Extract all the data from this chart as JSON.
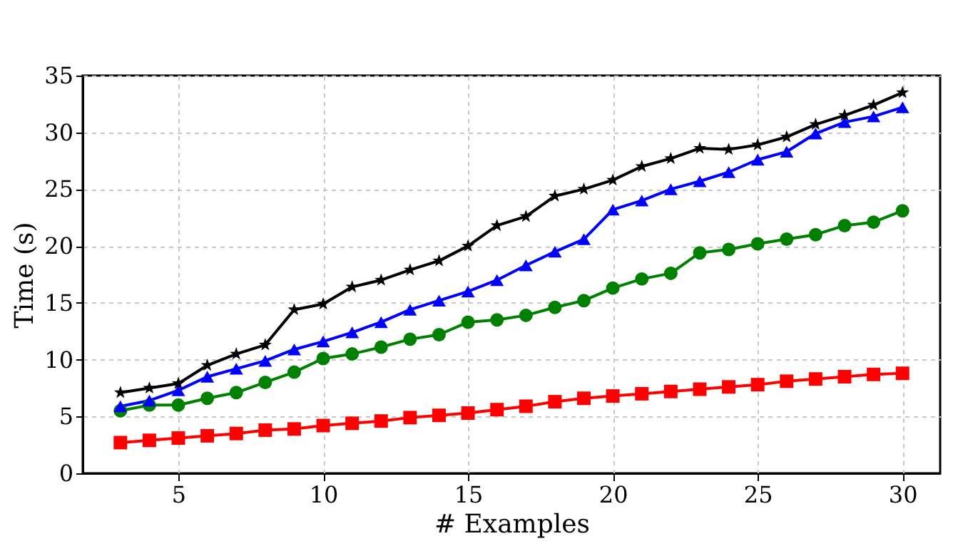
{
  "chart_data": {
    "type": "line",
    "xlabel": "# Examples",
    "ylabel": "Time (s)",
    "x": [
      3,
      4,
      5,
      6,
      7,
      8,
      9,
      10,
      11,
      12,
      13,
      14,
      15,
      16,
      17,
      18,
      19,
      20,
      21,
      22,
      23,
      24,
      25,
      26,
      27,
      28,
      29,
      30
    ],
    "xlim": [
      1.7,
      31.3
    ],
    "xticks": [
      5,
      10,
      15,
      20,
      25,
      30
    ],
    "ylim": [
      0,
      35
    ],
    "yticks": [
      0,
      5,
      10,
      15,
      20,
      25,
      30,
      35
    ],
    "grid": true,
    "legend": false,
    "line_style": "solid",
    "series": [
      {
        "color": "#ff0000",
        "marker": "square",
        "values": [
          2.7,
          2.9,
          3.1,
          3.3,
          3.5,
          3.8,
          3.9,
          4.2,
          4.4,
          4.6,
          4.9,
          5.1,
          5.3,
          5.6,
          5.9,
          6.3,
          6.6,
          6.8,
          7.0,
          7.2,
          7.4,
          7.6,
          7.8,
          8.1,
          8.3,
          8.5,
          8.7,
          8.8
        ]
      },
      {
        "color": "#008000",
        "marker": "circle",
        "values": [
          5.5,
          6.0,
          6.0,
          6.6,
          7.1,
          8.0,
          8.9,
          10.1,
          10.5,
          11.1,
          11.8,
          12.2,
          13.3,
          13.5,
          13.9,
          14.6,
          15.2,
          16.3,
          17.1,
          17.6,
          19.4,
          19.7,
          20.2,
          20.6,
          21.0,
          21.8,
          22.1,
          23.1
        ]
      },
      {
        "color": "#0000ff",
        "marker": "triangle",
        "values": [
          5.9,
          6.4,
          7.3,
          8.5,
          9.2,
          9.9,
          10.9,
          11.6,
          12.4,
          13.3,
          14.4,
          15.2,
          16.0,
          17.0,
          18.3,
          19.5,
          20.6,
          23.2,
          24.0,
          25.0,
          25.7,
          26.5,
          27.6,
          28.3,
          29.9,
          30.9,
          31.4,
          32.2
        ]
      },
      {
        "color": "#000000",
        "marker": "star",
        "values": [
          7.1,
          7.5,
          7.9,
          9.5,
          10.5,
          11.3,
          14.4,
          14.9,
          16.4,
          17.0,
          17.9,
          18.7,
          20.0,
          21.8,
          22.6,
          24.4,
          25.0,
          25.8,
          27.0,
          27.7,
          28.6,
          28.5,
          28.9,
          29.6,
          30.7,
          31.5,
          32.4,
          33.5
        ]
      }
    ]
  }
}
